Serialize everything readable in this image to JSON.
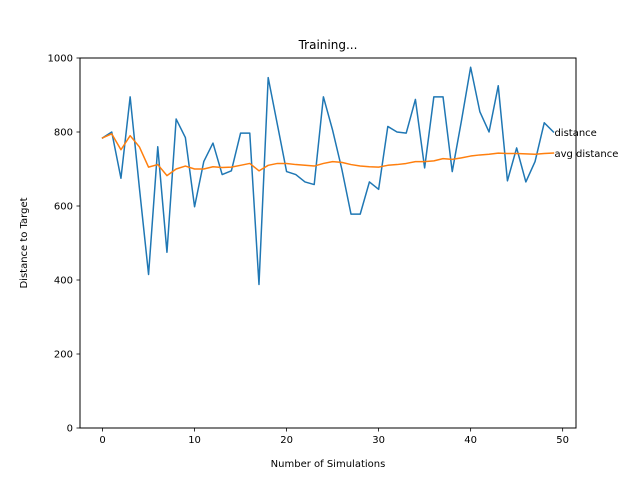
{
  "chart_data": {
    "type": "line",
    "title": "Training...",
    "xlabel": "Number of Simulations",
    "ylabel": "Distance to Target",
    "xlim": [
      -2.45,
      51.45
    ],
    "ylim": [
      0,
      1000
    ],
    "xticks": [
      0,
      10,
      20,
      30,
      40,
      50
    ],
    "yticks": [
      0,
      200,
      400,
      600,
      800,
      1000
    ],
    "grid": false,
    "legend": "none",
    "x": [
      0,
      1,
      2,
      3,
      4,
      5,
      6,
      7,
      8,
      9,
      10,
      11,
      12,
      13,
      14,
      15,
      16,
      17,
      18,
      19,
      20,
      21,
      22,
      23,
      24,
      25,
      26,
      27,
      28,
      29,
      30,
      31,
      32,
      33,
      34,
      35,
      36,
      37,
      38,
      39,
      40,
      41,
      42,
      43,
      44,
      45,
      46,
      47,
      48,
      49
    ],
    "series": [
      {
        "name": "distance",
        "color": "#1f77b4",
        "values": [
          784,
          800,
          675,
          895,
          650,
          415,
          760,
          475,
          835,
          785,
          598,
          720,
          770,
          685,
          695,
          797,
          797,
          388,
          947,
          820,
          693,
          685,
          665,
          658,
          895,
          805,
          700,
          578,
          578,
          665,
          645,
          815,
          800,
          797,
          888,
          703,
          895,
          895,
          693,
          830,
          975,
          855,
          800,
          925,
          668,
          757,
          665,
          720,
          825,
          800
        ]
      },
      {
        "name": "avg distance",
        "color": "#ff7f0e",
        "values": [
          784,
          795,
          752,
          790,
          760,
          705,
          712,
          682,
          700,
          708,
          700,
          700,
          706,
          704,
          705,
          710,
          715,
          695,
          710,
          715,
          715,
          712,
          710,
          708,
          715,
          720,
          718,
          712,
          708,
          706,
          705,
          710,
          712,
          715,
          720,
          720,
          722,
          728,
          726,
          730,
          735,
          738,
          740,
          743,
          742,
          742,
          741,
          740,
          742,
          743
        ]
      }
    ],
    "annotations": [
      {
        "text": "distance",
        "x": 49,
        "y": 800
      },
      {
        "text": "avg distance",
        "x": 49,
        "y": 743
      }
    ]
  }
}
